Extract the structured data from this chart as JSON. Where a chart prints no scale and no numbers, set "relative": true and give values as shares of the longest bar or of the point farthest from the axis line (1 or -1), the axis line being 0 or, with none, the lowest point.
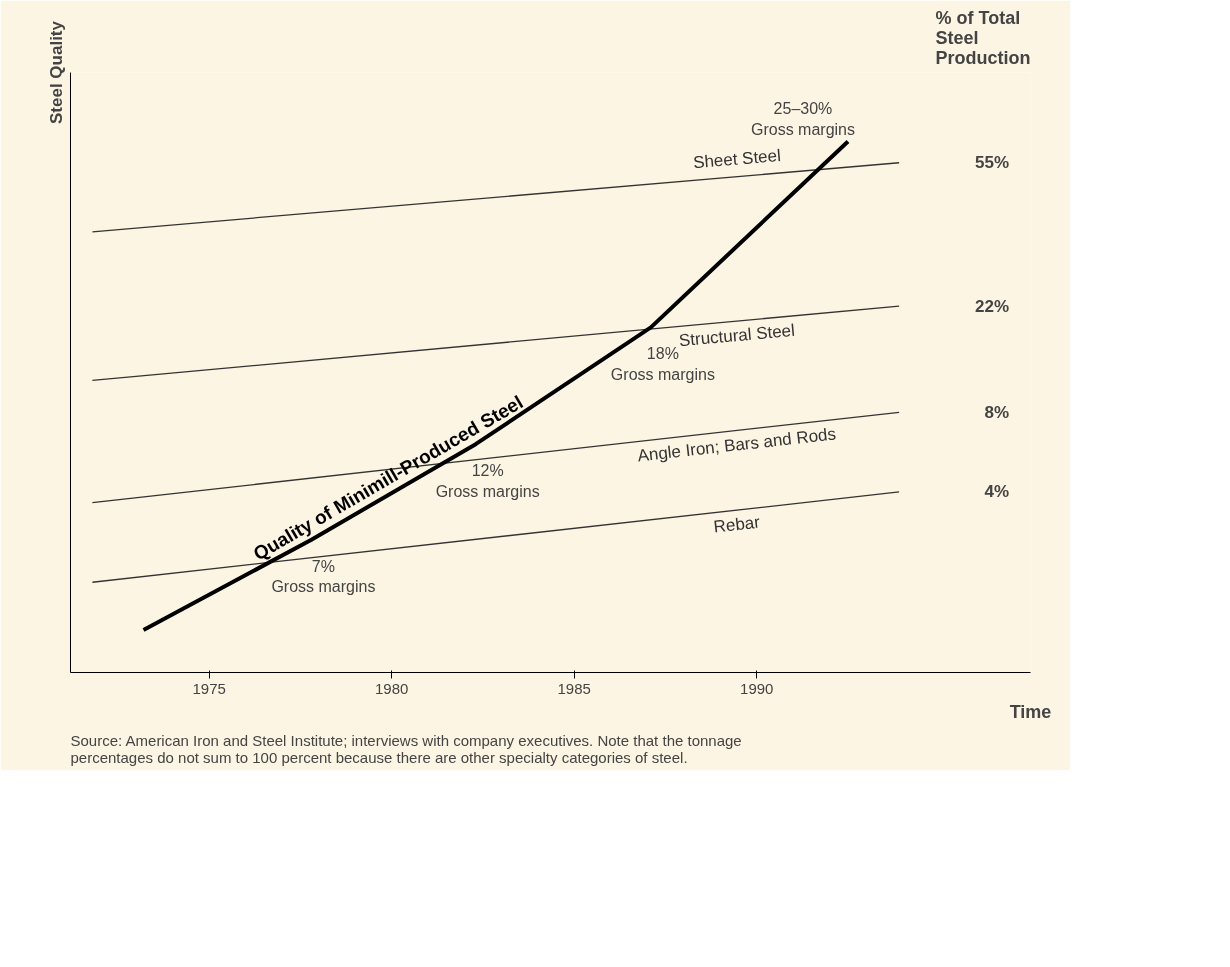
{
  "chart_data": {
    "type": "line",
    "relative": true,
    "xlabel": "Time",
    "ylabel": "Steel Quality",
    "xlim": [
      1971.2,
      1997.5
    ],
    "xticks": [
      1975,
      1980,
      1985,
      1990
    ],
    "grid": false,
    "line_style": "solid",
    "series": [
      {
        "name": "Sheet Steel",
        "color": "#333333",
        "x": [
          1971.8,
          1993.9
        ],
        "values": [
          0.83,
          0.96
        ]
      },
      {
        "name": "Structural Steel",
        "color": "#333333",
        "x": [
          1971.8,
          1993.9
        ],
        "values": [
          0.55,
          0.69
        ]
      },
      {
        "name": "Angle Iron; Bars and Rods",
        "color": "#333333",
        "x": [
          1971.8,
          1993.9
        ],
        "values": [
          0.32,
          0.49
        ]
      },
      {
        "name": "Rebar",
        "color": "#333333",
        "x": [
          1971.8,
          1993.9
        ],
        "values": [
          0.17,
          0.34
        ]
      },
      {
        "name": "Quality of Minimill-Produced Steel",
        "color": "#000000",
        "x": [
          1973.2,
          1977.8,
          1982.3,
          1987.1,
          1992.5
        ],
        "values": [
          0.08,
          0.25,
          0.43,
          0.65,
          1.0
        ]
      }
    ],
    "annotations": [
      "% of Total\nSteel\nProduction",
      "55%",
      "22%",
      "8%",
      "4%",
      {
        "text": "7%\nGross margins",
        "x": 1977.8,
        "y": 0.25
      },
      {
        "text": "12%\nGross margins",
        "x": 1982.3,
        "y": 0.43
      },
      {
        "text": "18%\nGross margins",
        "x": 1987.1,
        "y": 0.65
      },
      {
        "text": "25–30%\nGross margins",
        "x": 1992.5,
        "y": 1.0
      },
      "Source: American Iron and Steel Institute; interviews with company executives. Note that the tonnage\npercentages do not sum to 100 percent because there are other specialty categories of steel."
    ]
  }
}
